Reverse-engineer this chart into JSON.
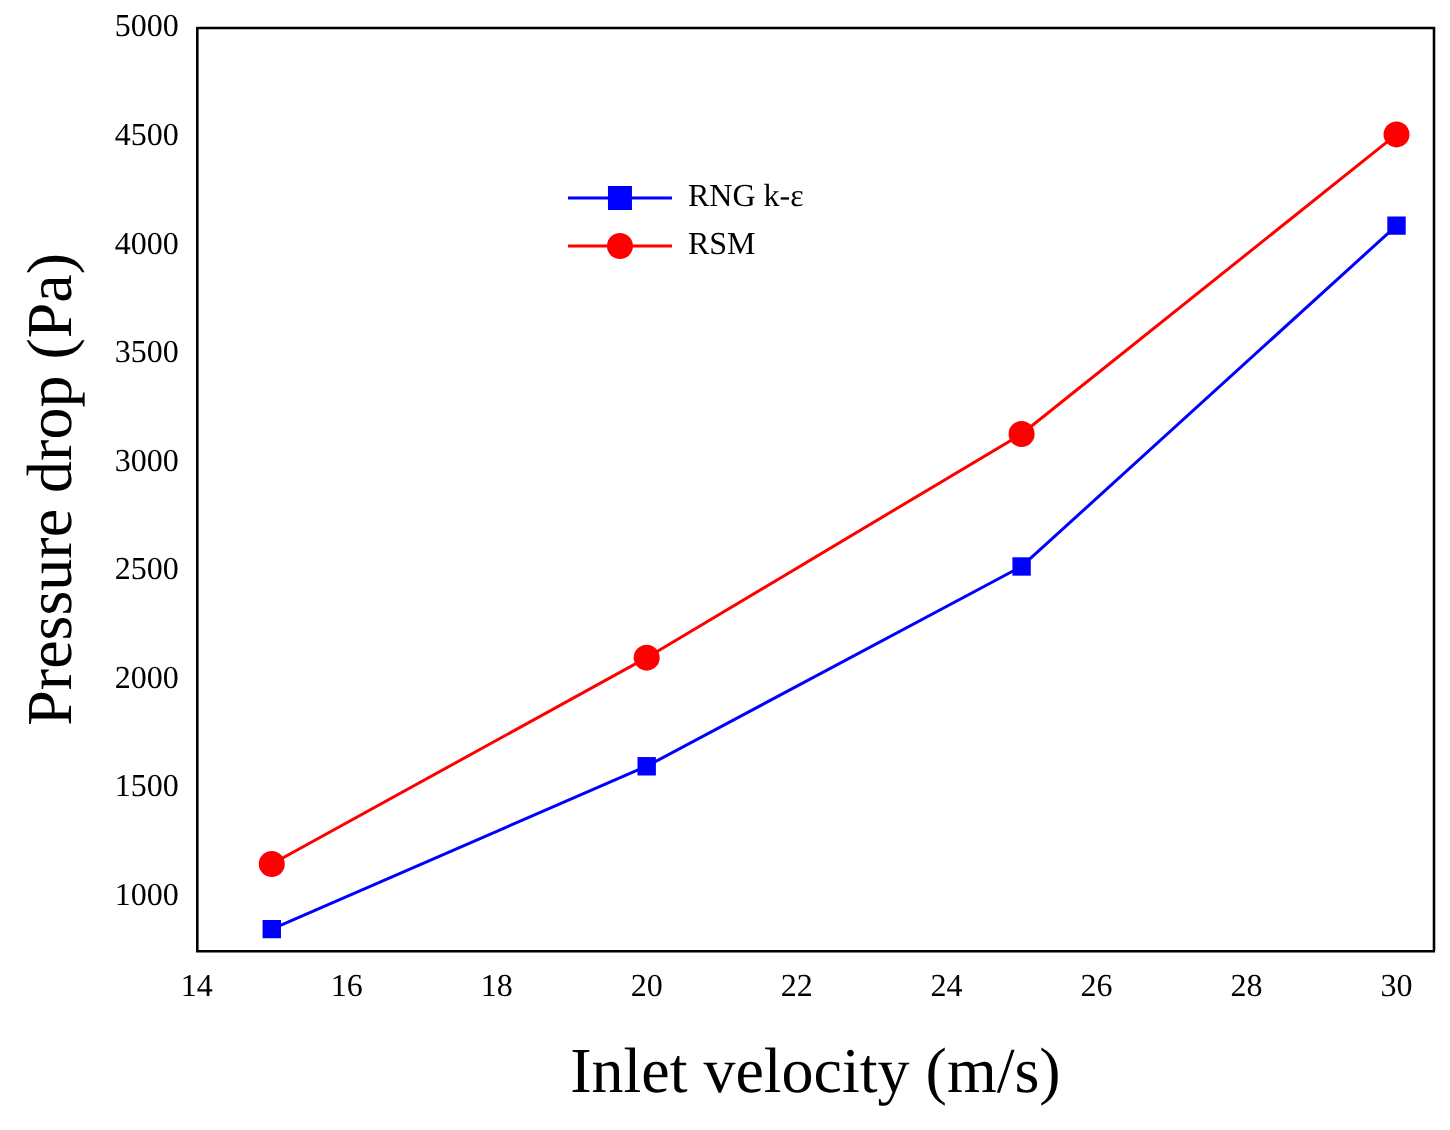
{
  "chart_data": {
    "type": "line",
    "xlabel": "Inlet velocity (m/s)",
    "ylabel": "Pressure drop (Pa)",
    "x": [
      15,
      20,
      25,
      30
    ],
    "series": [
      {
        "name": "RNG k-ε",
        "color": "#0000ff",
        "marker": "square",
        "values": [
          850,
          1600,
          2520,
          4090
        ]
      },
      {
        "name": "RSM",
        "color": "#ff0000",
        "marker": "circle",
        "values": [
          1150,
          2100,
          3130,
          4510
        ]
      }
    ],
    "xlim": [
      14,
      30.5
    ],
    "xticks": [
      14,
      16,
      18,
      20,
      22,
      24,
      26,
      28,
      30
    ],
    "ylim": [
      750,
      5000
    ],
    "yticks": [
      1000,
      1500,
      2000,
      2500,
      3000,
      3500,
      4000,
      4500,
      5000
    ],
    "grid": false,
    "legend": "top left",
    "line_style": "solid"
  }
}
